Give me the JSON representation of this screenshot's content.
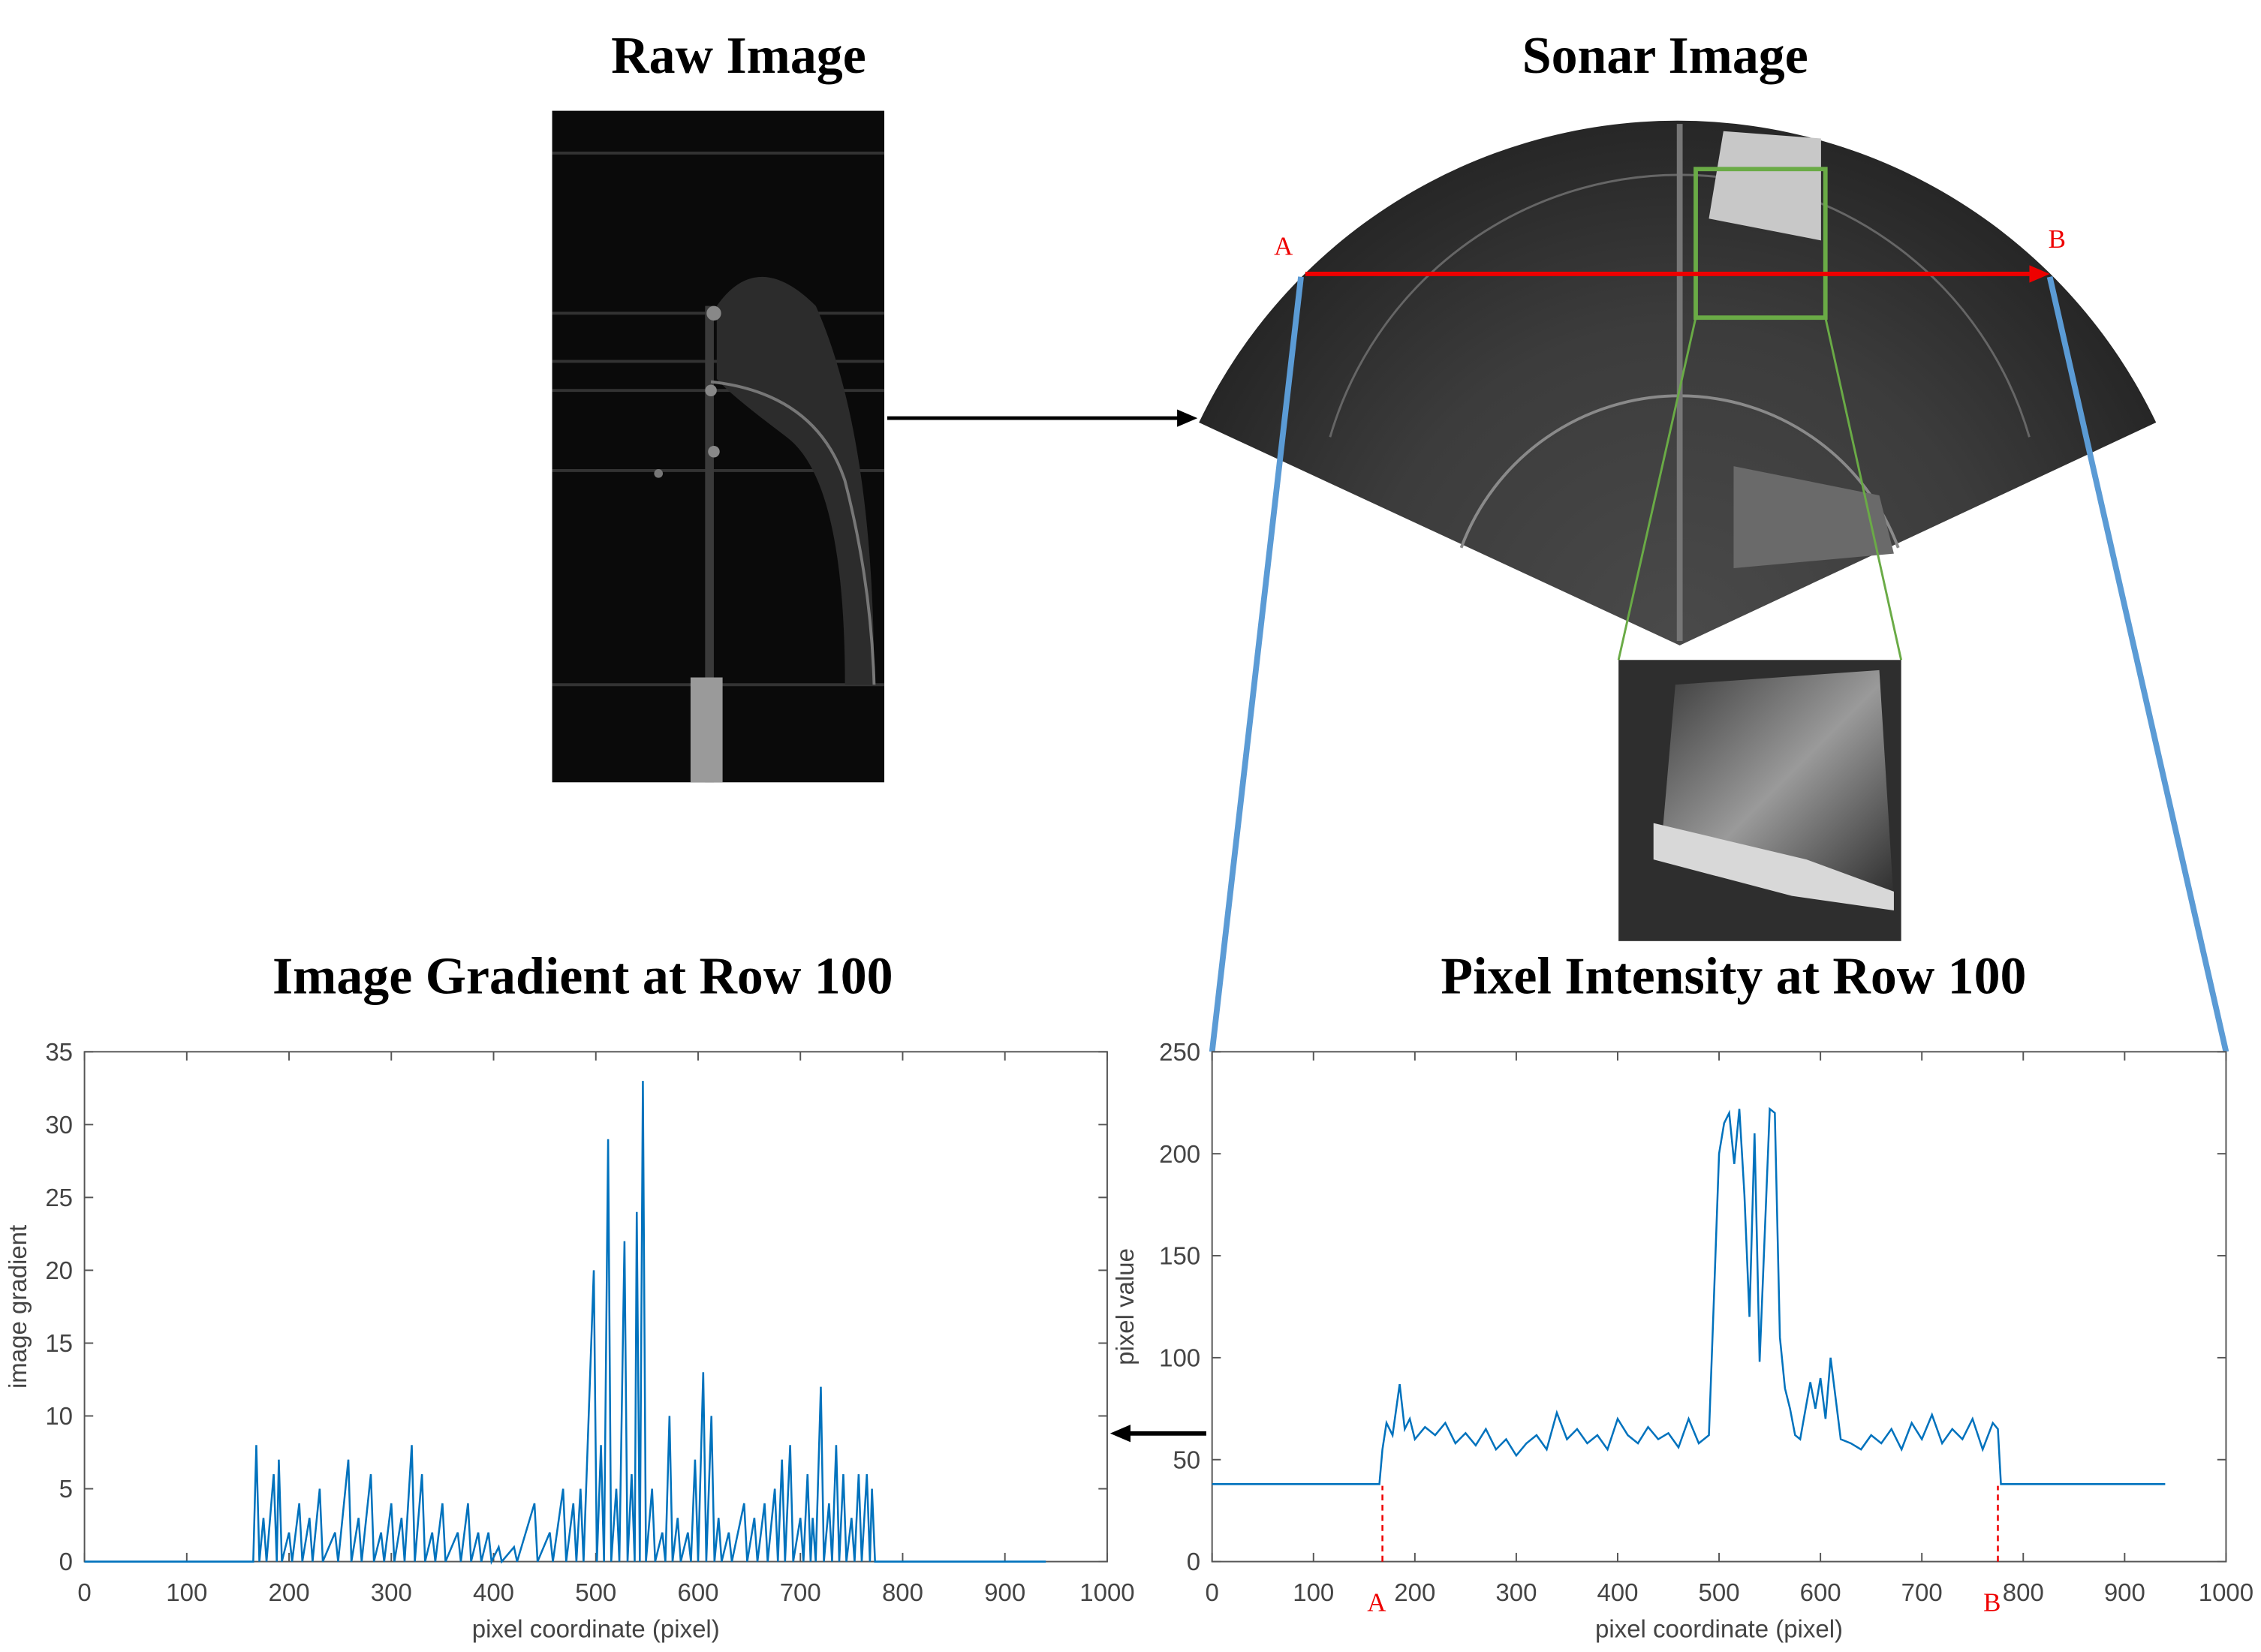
{
  "figure": {
    "raw_title": "Raw Image",
    "sonar_title": "Sonar Image",
    "point_a": "A",
    "point_b": "B"
  },
  "chart_data": [
    {
      "type": "line",
      "title": "Image Gradient at Row 100",
      "x_label": "pixel coordinate (pixel)",
      "y_label": "image gradient",
      "xlim": [
        0,
        1000
      ],
      "xticks": [
        0,
        100,
        200,
        300,
        400,
        500,
        600,
        700,
        800,
        900,
        1000
      ],
      "ylim": [
        0,
        35
      ],
      "yticks": [
        0,
        5,
        10,
        15,
        20,
        25,
        30,
        35
      ],
      "grid": false,
      "series": [
        {
          "color": "#0072bd",
          "x": [
            0,
            165,
            168,
            171,
            175,
            178,
            185,
            188,
            190,
            193,
            200,
            203,
            210,
            213,
            220,
            223,
            230,
            233,
            245,
            248,
            258,
            261,
            268,
            271,
            280,
            283,
            290,
            293,
            300,
            303,
            310,
            313,
            320,
            323,
            330,
            333,
            340,
            343,
            350,
            353,
            365,
            368,
            375,
            378,
            385,
            388,
            395,
            398,
            405,
            408,
            420,
            423,
            440,
            443,
            455,
            458,
            468,
            471,
            478,
            481,
            485,
            488,
            498,
            501,
            505,
            508,
            512,
            515,
            520,
            523,
            528,
            531,
            535,
            538,
            540,
            543,
            546,
            549,
            555,
            558,
            565,
            568,
            572,
            575,
            580,
            583,
            590,
            593,
            597,
            600,
            605,
            608,
            613,
            616,
            620,
            623,
            630,
            633,
            645,
            648,
            655,
            658,
            665,
            668,
            675,
            678,
            682,
            685,
            690,
            693,
            700,
            703,
            707,
            710,
            712,
            715,
            720,
            723,
            728,
            731,
            735,
            738,
            742,
            745,
            750,
            753,
            757,
            760,
            765,
            768,
            770,
            773,
            940
          ],
          "values": [
            0,
            0,
            8,
            0,
            3,
            0,
            6,
            0,
            7,
            0,
            2,
            0,
            4,
            0,
            3,
            0,
            5,
            0,
            2,
            0,
            7,
            0,
            3,
            0,
            6,
            0,
            2,
            0,
            4,
            0,
            3,
            0,
            8,
            0,
            6,
            0,
            2,
            0,
            4,
            0,
            2,
            0,
            4,
            0,
            2,
            0,
            2,
            0,
            1,
            0,
            1,
            0,
            4,
            0,
            2,
            0,
            5,
            0,
            4,
            0,
            5,
            0,
            20,
            0,
            8,
            0,
            29,
            0,
            5,
            0,
            22,
            0,
            6,
            0,
            24,
            0,
            33,
            0,
            5,
            0,
            2,
            0,
            10,
            0,
            3,
            0,
            2,
            0,
            7,
            0,
            13,
            0,
            10,
            0,
            3,
            0,
            2,
            0,
            4,
            0,
            3,
            0,
            4,
            0,
            5,
            0,
            7,
            0,
            8,
            0,
            3,
            0,
            6,
            0,
            3,
            0,
            12,
            0,
            4,
            0,
            8,
            0,
            6,
            0,
            3,
            0,
            6,
            0,
            6,
            0,
            5,
            0,
            0
          ]
        }
      ]
    },
    {
      "type": "line",
      "title": "Pixel Intensity at Row 100",
      "x_label": "pixel coordinate (pixel)",
      "y_label": "pixel value",
      "xlim": [
        0,
        1000
      ],
      "xticks": [
        0,
        100,
        200,
        300,
        400,
        500,
        600,
        700,
        800,
        900,
        1000
      ],
      "ylim": [
        0,
        250
      ],
      "yticks": [
        0,
        50,
        100,
        150,
        200,
        250
      ],
      "grid": false,
      "markers": [
        {
          "x": 168,
          "label": "A",
          "color": "#e00"
        },
        {
          "x": 775,
          "label": "B",
          "color": "#e00"
        }
      ],
      "series": [
        {
          "color": "#0072bd",
          "x": [
            0,
            165,
            168,
            172,
            178,
            185,
            190,
            195,
            200,
            210,
            220,
            230,
            240,
            250,
            260,
            270,
            280,
            290,
            300,
            310,
            320,
            330,
            340,
            350,
            360,
            370,
            380,
            390,
            400,
            410,
            420,
            430,
            440,
            450,
            460,
            470,
            480,
            490,
            495,
            500,
            505,
            510,
            515,
            520,
            525,
            530,
            535,
            540,
            545,
            550,
            555,
            560,
            565,
            570,
            575,
            580,
            590,
            595,
            600,
            605,
            610,
            615,
            620,
            630,
            640,
            650,
            660,
            670,
            680,
            690,
            700,
            710,
            720,
            730,
            740,
            750,
            760,
            770,
            775,
            778,
            940
          ],
          "values": [
            38,
            38,
            55,
            68,
            62,
            87,
            65,
            70,
            60,
            66,
            62,
            68,
            58,
            63,
            57,
            65,
            55,
            60,
            52,
            58,
            62,
            55,
            73,
            60,
            65,
            58,
            62,
            55,
            70,
            62,
            58,
            66,
            60,
            63,
            56,
            70,
            58,
            62,
            130,
            200,
            215,
            220,
            195,
            222,
            180,
            120,
            210,
            98,
            160,
            222,
            220,
            110,
            85,
            75,
            62,
            60,
            88,
            75,
            90,
            70,
            100,
            80,
            60,
            58,
            55,
            62,
            58,
            65,
            55,
            68,
            60,
            72,
            58,
            65,
            60,
            70,
            55,
            68,
            65,
            38,
            38
          ]
        }
      ]
    }
  ]
}
